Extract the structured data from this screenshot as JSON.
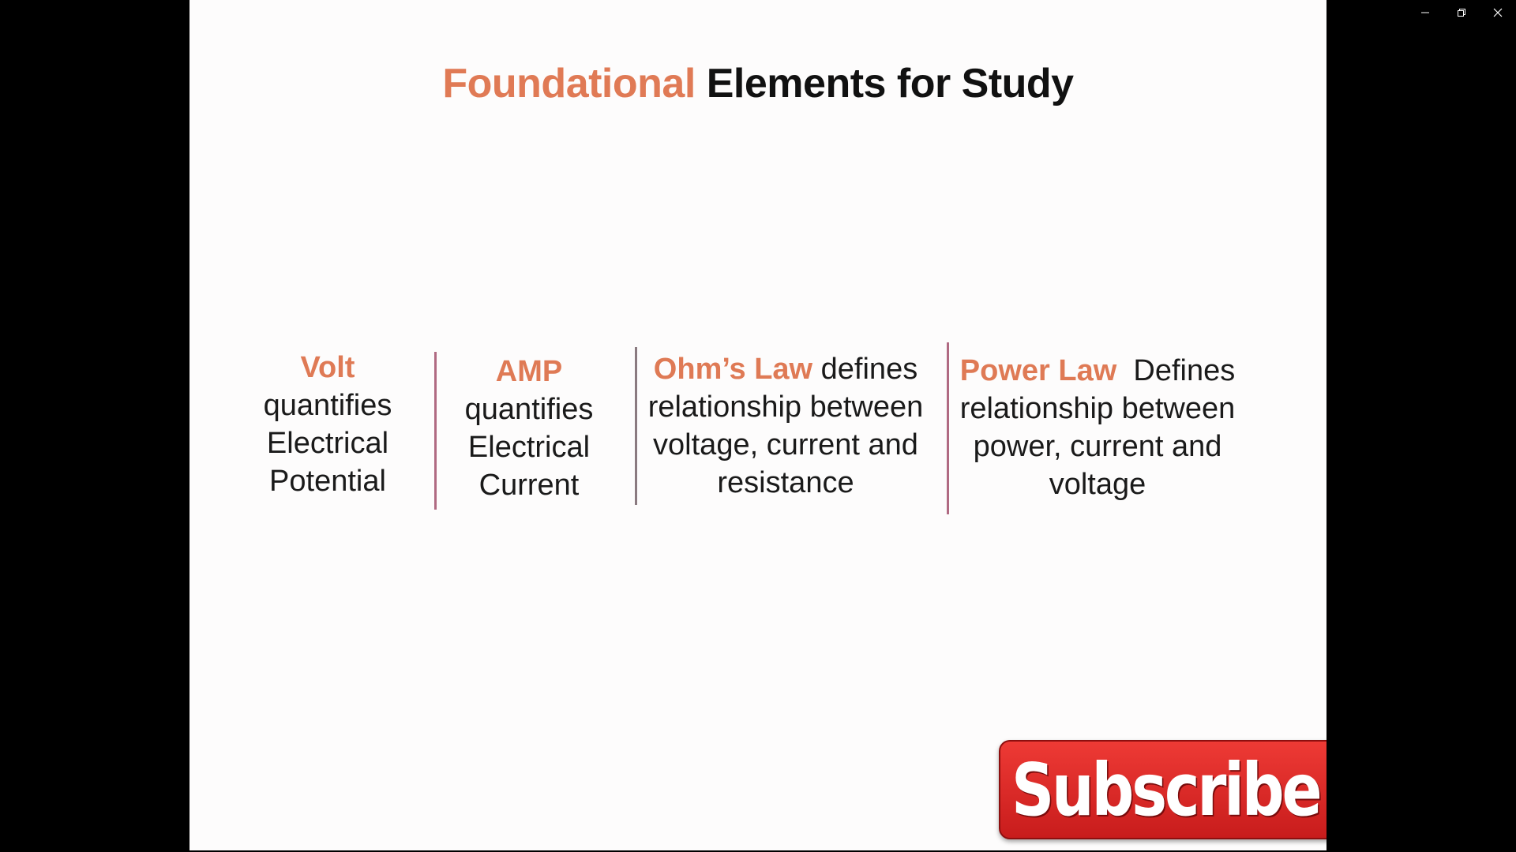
{
  "window": {
    "controls": {
      "minimize_icon": "minimize-icon",
      "restore_icon": "restore-icon",
      "close_icon": "close-icon"
    }
  },
  "slide": {
    "title_accent": "Foundational",
    "title_rest": "Elements for Study",
    "accent_color": "#e07a55",
    "columns": [
      {
        "term": "Volt",
        "lines": [
          "quantifies",
          "Electrical",
          "Potential"
        ]
      },
      {
        "term": "AMP",
        "lines": [
          "quantifies",
          "Electrical",
          "Current"
        ]
      },
      {
        "term": "Ohm’s Law",
        "term_suffix": " defines",
        "lines": [
          "relationship between",
          "voltage, current and",
          "resistance"
        ]
      },
      {
        "term": "Power Law",
        "term_suffix": "  Defines",
        "lines": [
          "relationship between",
          "power, current and",
          "voltage"
        ]
      }
    ]
  },
  "subscribe": {
    "label": "Subscribe",
    "color": "#e0302c"
  }
}
